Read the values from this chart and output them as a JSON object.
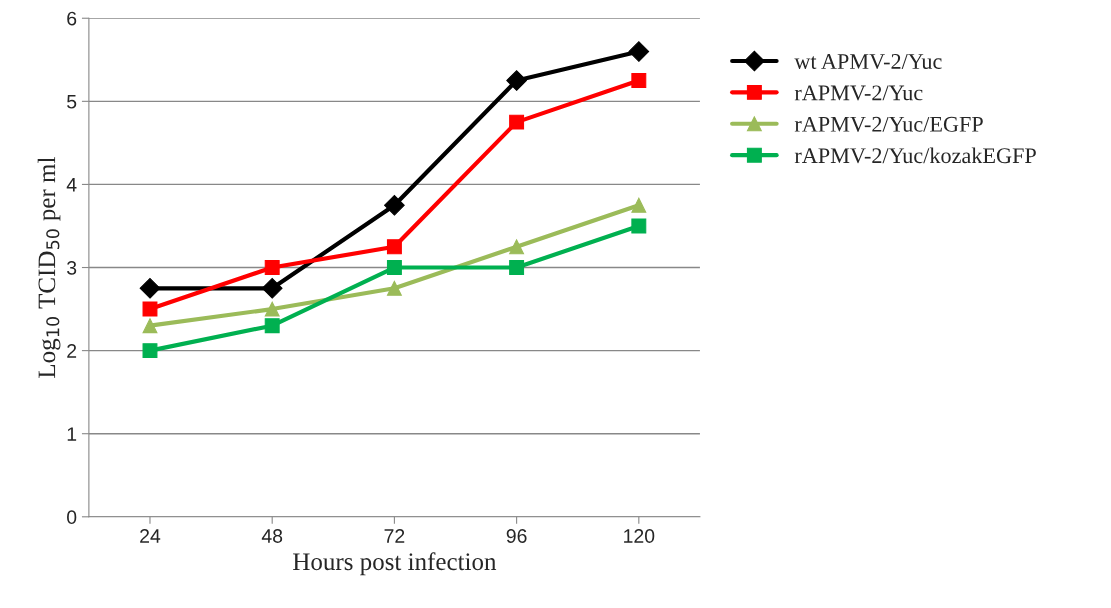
{
  "chart_data": {
    "type": "line",
    "xlabel": "Hours post infection",
    "ylabel": "Log$_{10}$ TCID$_{50}$ per ml",
    "categories": [
      "24",
      "48",
      "72",
      "96",
      "120"
    ],
    "ylim": [
      0,
      6
    ],
    "yticks": [
      0,
      1,
      2,
      3,
      4,
      5,
      6
    ],
    "grid": "y",
    "legend": "right",
    "series": [
      {
        "name": "wt APMV-2/Yuc",
        "color": "#000000",
        "marker": "diamond",
        "values": [
          2.75,
          2.75,
          3.75,
          5.25,
          5.6
        ]
      },
      {
        "name": "rAPMV-2/Yuc",
        "color": "#ff0000",
        "marker": "square",
        "values": [
          2.5,
          3.0,
          3.25,
          4.75,
          5.25
        ]
      },
      {
        "name": "rAPMV-2/Yuc/EGFP",
        "color": "#9bbb59",
        "marker": "triangle",
        "values": [
          2.3,
          2.5,
          2.75,
          3.25,
          3.75
        ]
      },
      {
        "name": "rAPMV-2/Yuc/kozakEGFP",
        "color": "#00b050",
        "marker": "square",
        "values": [
          2.0,
          2.3,
          3.0,
          3.0,
          3.5
        ]
      }
    ]
  }
}
